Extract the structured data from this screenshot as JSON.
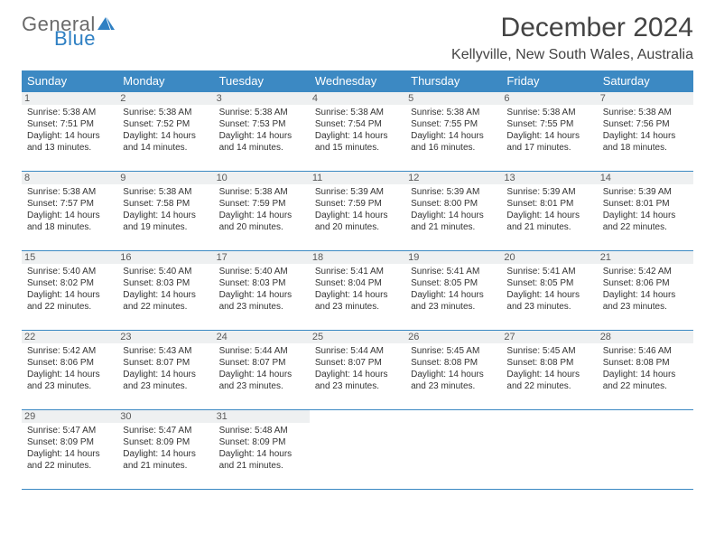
{
  "logo": {
    "text1": "General",
    "text2": "Blue",
    "icon_color": "#2f80c3"
  },
  "title": "December 2024",
  "location": "Kellyville, New South Wales, Australia",
  "colors": {
    "header_bg": "#3c89c3",
    "header_text": "#ffffff",
    "border": "#3c89c3",
    "daynum_bg": "#eef0f1",
    "text": "#333333",
    "logo_gray": "#6a6a6a",
    "logo_blue": "#2f80c3"
  },
  "typography": {
    "title_fontsize": 30,
    "location_fontsize": 16,
    "weekday_fontsize": 13,
    "daynum_fontsize": 11,
    "body_fontsize": 10
  },
  "weekdays": [
    "Sunday",
    "Monday",
    "Tuesday",
    "Wednesday",
    "Thursday",
    "Friday",
    "Saturday"
  ],
  "weeks": [
    [
      {
        "day": "1",
        "sunrise": "Sunrise: 5:38 AM",
        "sunset": "Sunset: 7:51 PM",
        "d1": "Daylight: 14 hours",
        "d2": "and 13 minutes."
      },
      {
        "day": "2",
        "sunrise": "Sunrise: 5:38 AM",
        "sunset": "Sunset: 7:52 PM",
        "d1": "Daylight: 14 hours",
        "d2": "and 14 minutes."
      },
      {
        "day": "3",
        "sunrise": "Sunrise: 5:38 AM",
        "sunset": "Sunset: 7:53 PM",
        "d1": "Daylight: 14 hours",
        "d2": "and 14 minutes."
      },
      {
        "day": "4",
        "sunrise": "Sunrise: 5:38 AM",
        "sunset": "Sunset: 7:54 PM",
        "d1": "Daylight: 14 hours",
        "d2": "and 15 minutes."
      },
      {
        "day": "5",
        "sunrise": "Sunrise: 5:38 AM",
        "sunset": "Sunset: 7:55 PM",
        "d1": "Daylight: 14 hours",
        "d2": "and 16 minutes."
      },
      {
        "day": "6",
        "sunrise": "Sunrise: 5:38 AM",
        "sunset": "Sunset: 7:55 PM",
        "d1": "Daylight: 14 hours",
        "d2": "and 17 minutes."
      },
      {
        "day": "7",
        "sunrise": "Sunrise: 5:38 AM",
        "sunset": "Sunset: 7:56 PM",
        "d1": "Daylight: 14 hours",
        "d2": "and 18 minutes."
      }
    ],
    [
      {
        "day": "8",
        "sunrise": "Sunrise: 5:38 AM",
        "sunset": "Sunset: 7:57 PM",
        "d1": "Daylight: 14 hours",
        "d2": "and 18 minutes."
      },
      {
        "day": "9",
        "sunrise": "Sunrise: 5:38 AM",
        "sunset": "Sunset: 7:58 PM",
        "d1": "Daylight: 14 hours",
        "d2": "and 19 minutes."
      },
      {
        "day": "10",
        "sunrise": "Sunrise: 5:38 AM",
        "sunset": "Sunset: 7:59 PM",
        "d1": "Daylight: 14 hours",
        "d2": "and 20 minutes."
      },
      {
        "day": "11",
        "sunrise": "Sunrise: 5:39 AM",
        "sunset": "Sunset: 7:59 PM",
        "d1": "Daylight: 14 hours",
        "d2": "and 20 minutes."
      },
      {
        "day": "12",
        "sunrise": "Sunrise: 5:39 AM",
        "sunset": "Sunset: 8:00 PM",
        "d1": "Daylight: 14 hours",
        "d2": "and 21 minutes."
      },
      {
        "day": "13",
        "sunrise": "Sunrise: 5:39 AM",
        "sunset": "Sunset: 8:01 PM",
        "d1": "Daylight: 14 hours",
        "d2": "and 21 minutes."
      },
      {
        "day": "14",
        "sunrise": "Sunrise: 5:39 AM",
        "sunset": "Sunset: 8:01 PM",
        "d1": "Daylight: 14 hours",
        "d2": "and 22 minutes."
      }
    ],
    [
      {
        "day": "15",
        "sunrise": "Sunrise: 5:40 AM",
        "sunset": "Sunset: 8:02 PM",
        "d1": "Daylight: 14 hours",
        "d2": "and 22 minutes."
      },
      {
        "day": "16",
        "sunrise": "Sunrise: 5:40 AM",
        "sunset": "Sunset: 8:03 PM",
        "d1": "Daylight: 14 hours",
        "d2": "and 22 minutes."
      },
      {
        "day": "17",
        "sunrise": "Sunrise: 5:40 AM",
        "sunset": "Sunset: 8:03 PM",
        "d1": "Daylight: 14 hours",
        "d2": "and 23 minutes."
      },
      {
        "day": "18",
        "sunrise": "Sunrise: 5:41 AM",
        "sunset": "Sunset: 8:04 PM",
        "d1": "Daylight: 14 hours",
        "d2": "and 23 minutes."
      },
      {
        "day": "19",
        "sunrise": "Sunrise: 5:41 AM",
        "sunset": "Sunset: 8:05 PM",
        "d1": "Daylight: 14 hours",
        "d2": "and 23 minutes."
      },
      {
        "day": "20",
        "sunrise": "Sunrise: 5:41 AM",
        "sunset": "Sunset: 8:05 PM",
        "d1": "Daylight: 14 hours",
        "d2": "and 23 minutes."
      },
      {
        "day": "21",
        "sunrise": "Sunrise: 5:42 AM",
        "sunset": "Sunset: 8:06 PM",
        "d1": "Daylight: 14 hours",
        "d2": "and 23 minutes."
      }
    ],
    [
      {
        "day": "22",
        "sunrise": "Sunrise: 5:42 AM",
        "sunset": "Sunset: 8:06 PM",
        "d1": "Daylight: 14 hours",
        "d2": "and 23 minutes."
      },
      {
        "day": "23",
        "sunrise": "Sunrise: 5:43 AM",
        "sunset": "Sunset: 8:07 PM",
        "d1": "Daylight: 14 hours",
        "d2": "and 23 minutes."
      },
      {
        "day": "24",
        "sunrise": "Sunrise: 5:44 AM",
        "sunset": "Sunset: 8:07 PM",
        "d1": "Daylight: 14 hours",
        "d2": "and 23 minutes."
      },
      {
        "day": "25",
        "sunrise": "Sunrise: 5:44 AM",
        "sunset": "Sunset: 8:07 PM",
        "d1": "Daylight: 14 hours",
        "d2": "and 23 minutes."
      },
      {
        "day": "26",
        "sunrise": "Sunrise: 5:45 AM",
        "sunset": "Sunset: 8:08 PM",
        "d1": "Daylight: 14 hours",
        "d2": "and 23 minutes."
      },
      {
        "day": "27",
        "sunrise": "Sunrise: 5:45 AM",
        "sunset": "Sunset: 8:08 PM",
        "d1": "Daylight: 14 hours",
        "d2": "and 22 minutes."
      },
      {
        "day": "28",
        "sunrise": "Sunrise: 5:46 AM",
        "sunset": "Sunset: 8:08 PM",
        "d1": "Daylight: 14 hours",
        "d2": "and 22 minutes."
      }
    ],
    [
      {
        "day": "29",
        "sunrise": "Sunrise: 5:47 AM",
        "sunset": "Sunset: 8:09 PM",
        "d1": "Daylight: 14 hours",
        "d2": "and 22 minutes."
      },
      {
        "day": "30",
        "sunrise": "Sunrise: 5:47 AM",
        "sunset": "Sunset: 8:09 PM",
        "d1": "Daylight: 14 hours",
        "d2": "and 21 minutes."
      },
      {
        "day": "31",
        "sunrise": "Sunrise: 5:48 AM",
        "sunset": "Sunset: 8:09 PM",
        "d1": "Daylight: 14 hours",
        "d2": "and 21 minutes."
      },
      null,
      null,
      null,
      null
    ]
  ]
}
